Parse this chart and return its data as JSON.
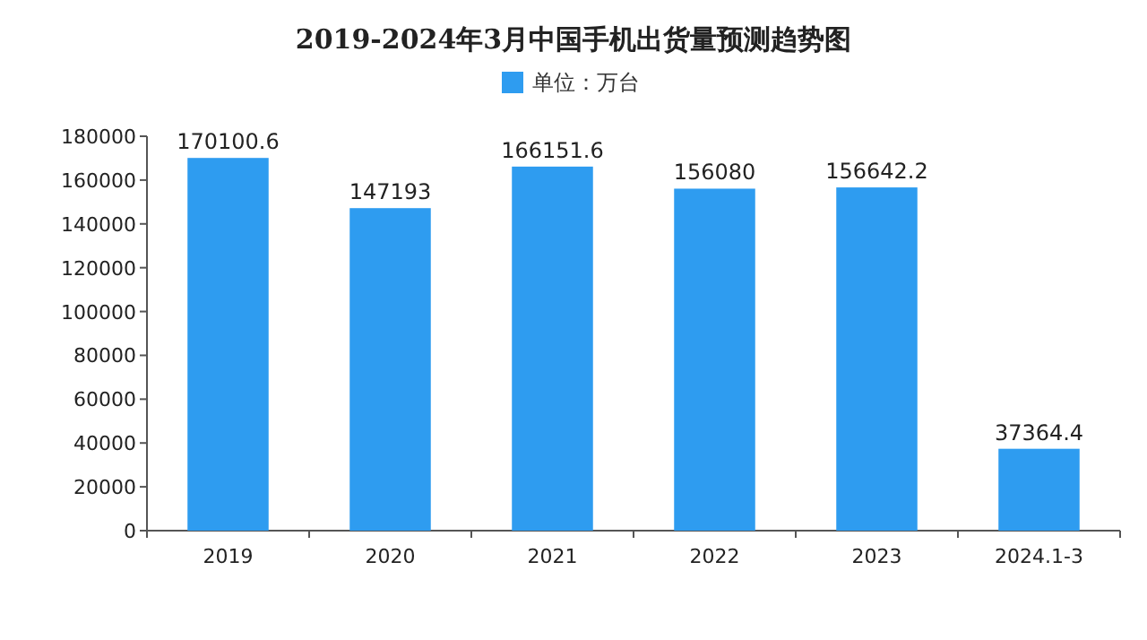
{
  "chart_data": {
    "type": "bar",
    "title": "2019-2024年3月中国手机出货量预测趋势图",
    "categories": [
      "2019",
      "2020",
      "2021",
      "2022",
      "2023",
      "2024.1-3"
    ],
    "series": [
      {
        "name": "单位：万台",
        "color": "#2e9cf0",
        "values": [
          170100.6,
          147193,
          166151.6,
          156080,
          156642.2,
          37364.4
        ]
      }
    ],
    "ylim": [
      0,
      180000
    ],
    "yticks": [
      0,
      20000,
      40000,
      60000,
      80000,
      100000,
      120000,
      140000,
      160000,
      180000
    ],
    "data_labels": true,
    "legend": "top",
    "grid": false
  }
}
